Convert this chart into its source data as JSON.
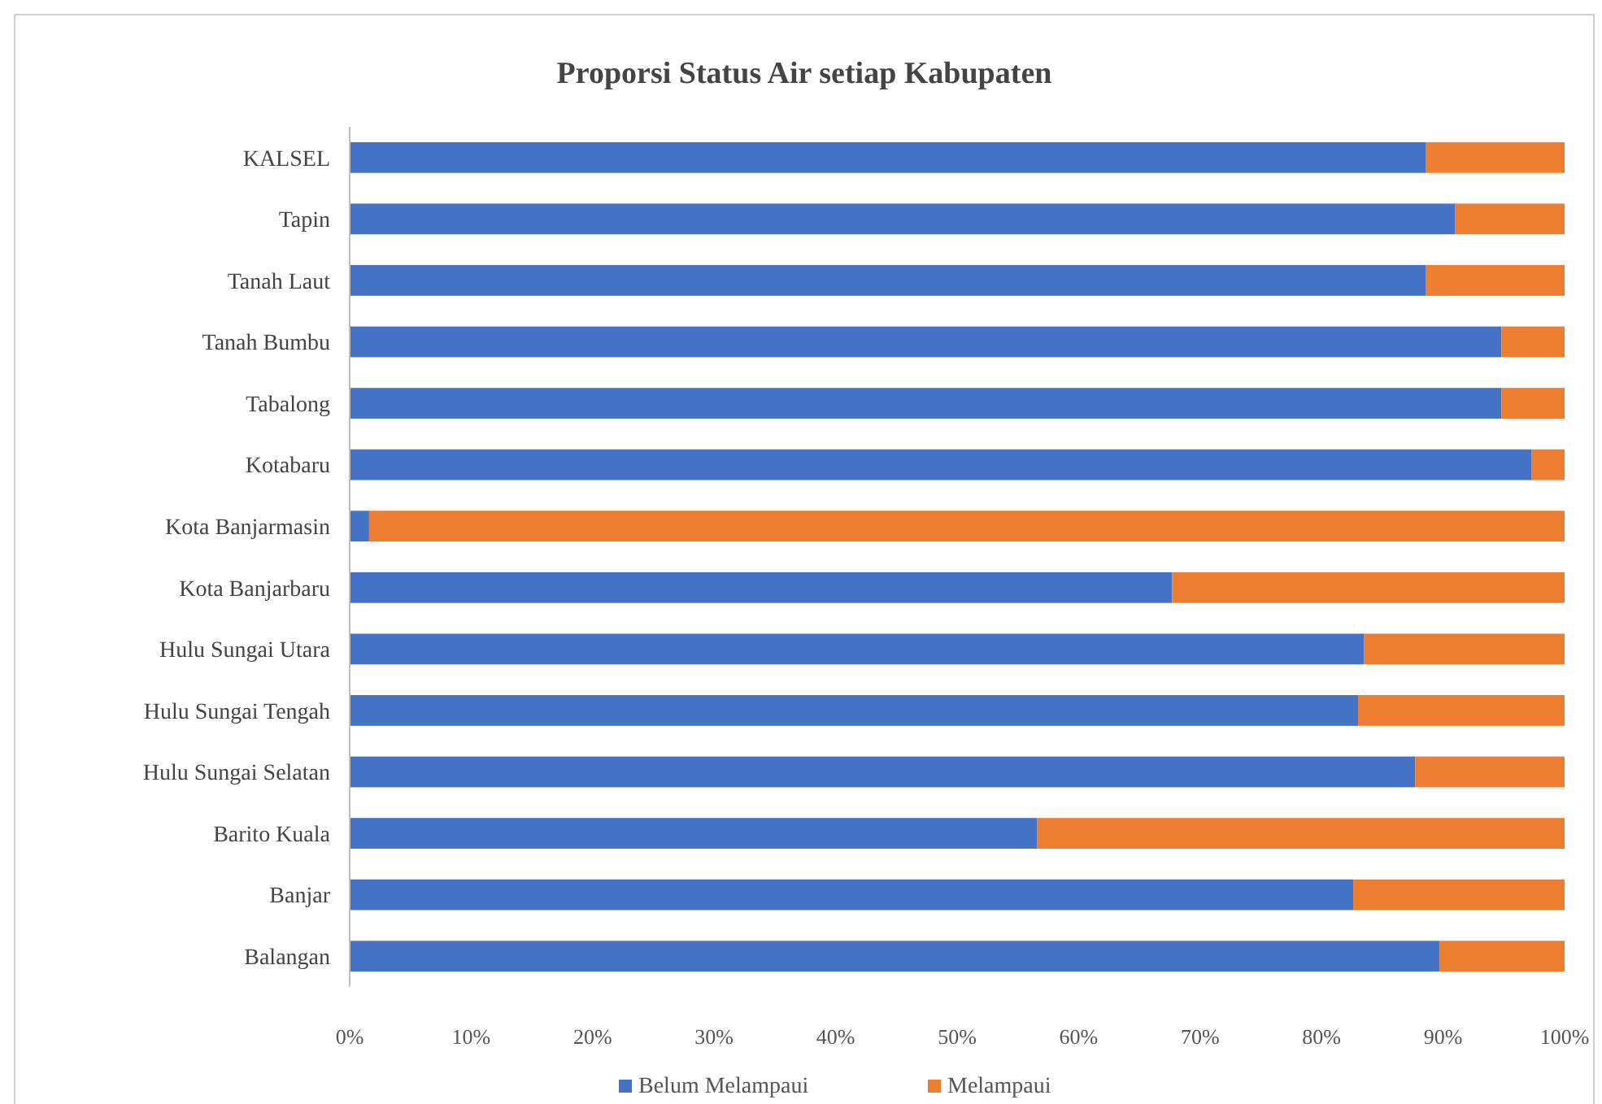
{
  "chart_data": {
    "type": "bar",
    "orientation": "horizontal",
    "stacked": true,
    "title": "Proporsi Status Air setiap Kabupaten",
    "categories": [
      "KALSEL",
      "Tapin",
      "Tanah Laut",
      "Tanah Bumbu",
      "Tabalong",
      "Kotabaru",
      "Kota Banjarmasin",
      "Kota Banjarbaru",
      "Hulu Sungai Utara",
      "Hulu Sungai Tengah",
      "Hulu Sungai Selatan",
      "Barito Kuala",
      "Banjar",
      "Balangan"
    ],
    "series": [
      {
        "name": "Belum Melampaui",
        "color": "#4472c4",
        "values": [
          88.6,
          91.0,
          88.6,
          94.8,
          94.8,
          97.3,
          1.6,
          67.7,
          83.5,
          83.0,
          87.7,
          56.6,
          82.6,
          89.7
        ]
      },
      {
        "name": "Melampaui",
        "color": "#ed7d31",
        "values": [
          11.4,
          9.0,
          11.4,
          5.2,
          5.2,
          2.7,
          98.4,
          32.3,
          16.5,
          17.0,
          12.3,
          43.4,
          17.4,
          10.3
        ]
      }
    ],
    "xlim": [
      0,
      100
    ],
    "xticks": [
      {
        "value": 0,
        "label": "0%"
      },
      {
        "value": 10,
        "label": "10%"
      },
      {
        "value": 20,
        "label": "20%"
      },
      {
        "value": 30,
        "label": "30%"
      },
      {
        "value": 40,
        "label": "40%"
      },
      {
        "value": 50,
        "label": "50%"
      },
      {
        "value": 60,
        "label": "60%"
      },
      {
        "value": 70,
        "label": "70%"
      },
      {
        "value": 80,
        "label": "80%"
      },
      {
        "value": 90,
        "label": "90%"
      },
      {
        "value": 100,
        "label": "100%"
      }
    ],
    "grid": false,
    "legend": "bottom"
  }
}
